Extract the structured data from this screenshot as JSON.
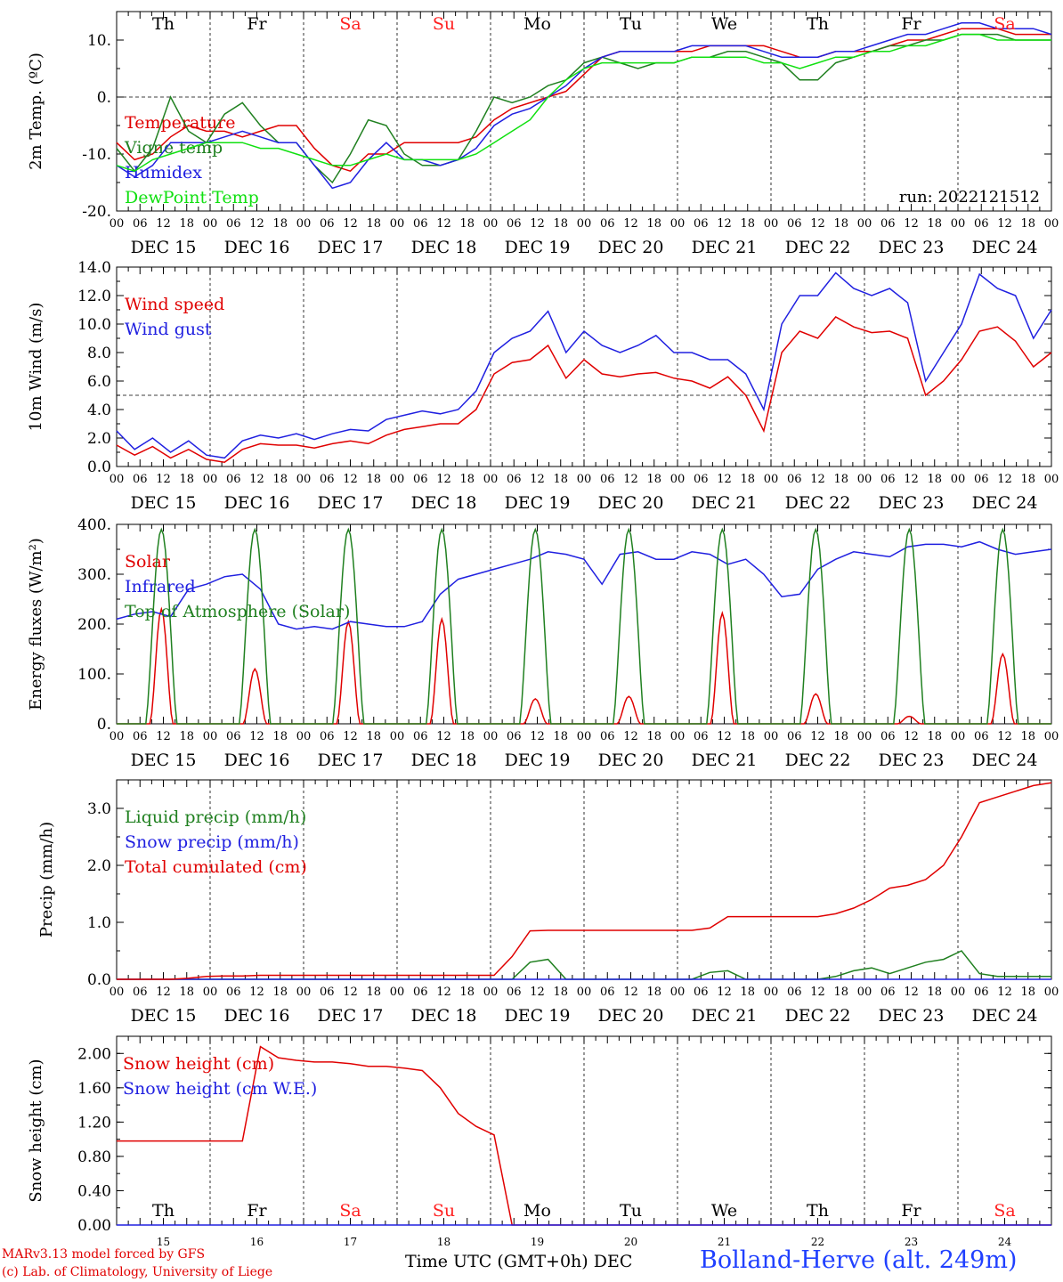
{
  "run_label": "run: 2022121512",
  "x_axis": {
    "hour_ticks": [
      "00",
      "06",
      "12",
      "18"
    ],
    "dates": [
      "DEC 15",
      "DEC 16",
      "DEC 17",
      "DEC 18",
      "DEC 19",
      "DEC 20",
      "DEC 21",
      "DEC 22",
      "DEC 23",
      "DEC 24"
    ],
    "weekdays": [
      "Th",
      "Fr",
      "Sa",
      "Su",
      "Mo",
      "Tu",
      "We",
      "Th",
      "Fr",
      "Sa"
    ],
    "weekend_color": "#ff2020",
    "weekday_color": "#000000",
    "day_numbers": [
      "15",
      "16",
      "17",
      "18",
      "19",
      "20",
      "21",
      "22",
      "23",
      "24"
    ],
    "bottom_label": "Time UTC (GMT+0h)",
    "month_label": "DEC"
  },
  "footer": {
    "model": "MARv3.13 model forced by GFS",
    "credit": "(c) Lab. of Climatology, University of Liege",
    "station": "Bolland-Herve (alt. 249m)"
  },
  "chart_data": [
    {
      "type": "line",
      "ylabel": "2m Temp. (ºC)",
      "ylim": [
        -20,
        15
      ],
      "yticks": [
        -20,
        -10,
        0,
        10
      ],
      "ytick_labels": [
        "-20.",
        "-10.",
        "0.",
        "10."
      ],
      "ref_line": 0,
      "series": [
        {
          "name": "Temperature",
          "color": "#e00000",
          "values": [
            -8,
            -11,
            -10,
            -7,
            -5,
            -6,
            -6,
            -7,
            -6,
            -5,
            -5,
            -9,
            -12,
            -13,
            -10,
            -10,
            -8,
            -8,
            -8,
            -8,
            -7,
            -4,
            -2,
            -1,
            0,
            1,
            4,
            7,
            8,
            8,
            8,
            8,
            8,
            9,
            9,
            9,
            9,
            8,
            7,
            7,
            8,
            8,
            8,
            9,
            10,
            10,
            11,
            12,
            12,
            12,
            11,
            11,
            11
          ]
        },
        {
          "name": "Vigne temp",
          "color": "#208020",
          "values": [
            -9,
            -13,
            -9,
            0,
            -6,
            -8,
            -3,
            -1,
            -5,
            -8,
            -8,
            -12,
            -15,
            -10,
            -4,
            -5,
            -10,
            -12,
            -12,
            -11,
            -6,
            0,
            -1,
            0,
            2,
            3,
            6,
            7,
            6,
            5,
            6,
            6,
            7,
            7,
            8,
            8,
            7,
            6,
            3,
            3,
            6,
            7,
            8,
            9,
            9,
            10,
            10,
            11,
            11,
            11,
            10,
            10,
            10
          ]
        },
        {
          "name": "Humidex",
          "color": "#2020e0",
          "values": [
            -12,
            -14,
            -12,
            -8,
            -8,
            -8,
            -7,
            -6,
            -7,
            -8,
            -8,
            -12,
            -16,
            -15,
            -11,
            -8,
            -11,
            -11,
            -12,
            -11,
            -9,
            -5,
            -3,
            -2,
            0,
            2,
            5,
            7,
            8,
            8,
            8,
            8,
            9,
            9,
            9,
            9,
            8,
            7,
            7,
            7,
            8,
            8,
            9,
            10,
            11,
            11,
            12,
            13,
            13,
            12,
            12,
            12,
            11
          ]
        },
        {
          "name": "DewPoint Temp",
          "color": "#10e010",
          "values": [
            -12,
            -13,
            -11,
            -10,
            -9,
            -8,
            -8,
            -8,
            -9,
            -9,
            -10,
            -11,
            -12,
            -12,
            -11,
            -10,
            -11,
            -11,
            -11,
            -11,
            -10,
            -8,
            -6,
            -4,
            0,
            3,
            5,
            6,
            6,
            6,
            6,
            6,
            7,
            7,
            7,
            7,
            6,
            6,
            5,
            6,
            7,
            7,
            8,
            8,
            9,
            9,
            10,
            11,
            11,
            10,
            10,
            10,
            10
          ]
        }
      ]
    },
    {
      "type": "line",
      "ylabel": "10m Wind (m/s)",
      "ylim": [
        0,
        14
      ],
      "yticks": [
        0,
        2,
        4,
        6,
        8,
        10,
        12,
        14
      ],
      "ytick_labels": [
        "0.0",
        "2.0",
        "4.0",
        "6.0",
        "8.0",
        "10.0",
        "12.0",
        "14.0"
      ],
      "ref_line": 5,
      "series": [
        {
          "name": "Wind speed",
          "color": "#e00000",
          "values": [
            1.5,
            0.8,
            1.4,
            0.6,
            1.2,
            0.5,
            0.3,
            1.2,
            1.6,
            1.5,
            1.5,
            1.3,
            1.6,
            1.8,
            1.6,
            2.2,
            2.6,
            2.8,
            3.0,
            3.0,
            4.0,
            6.5,
            7.3,
            7.5,
            8.5,
            6.2,
            7.5,
            6.5,
            6.3,
            6.5,
            6.6,
            6.2,
            6.0,
            5.5,
            6.3,
            5.0,
            2.5,
            8.0,
            9.5,
            9.0,
            10.5,
            9.8,
            9.4,
            9.5,
            9.0,
            5.0,
            6.0,
            7.5,
            9.5,
            9.8,
            8.8,
            7.0,
            8.0
          ]
        },
        {
          "name": "Wind gust",
          "color": "#2020e0",
          "values": [
            2.5,
            1.2,
            2.0,
            1.0,
            1.8,
            0.8,
            0.6,
            1.8,
            2.2,
            2.0,
            2.3,
            1.9,
            2.3,
            2.6,
            2.5,
            3.3,
            3.6,
            3.9,
            3.7,
            4.0,
            5.3,
            8.0,
            9.0,
            9.5,
            10.9,
            8.0,
            9.5,
            8.5,
            8.0,
            8.5,
            9.2,
            8.0,
            8.0,
            7.5,
            7.5,
            6.5,
            4.0,
            10.0,
            12.0,
            12.0,
            13.6,
            12.5,
            12.0,
            12.5,
            11.5,
            6.0,
            8.0,
            10.0,
            13.5,
            12.5,
            12.0,
            9.0,
            11.0
          ]
        }
      ]
    },
    {
      "type": "line",
      "ylabel": "Energy fluxes (W/m²)",
      "ylim": [
        0,
        400
      ],
      "yticks": [
        0,
        100,
        200,
        300,
        400
      ],
      "ytick_labels": [
        "0.",
        "100.",
        "200.",
        "300.",
        "400."
      ],
      "series": [
        {
          "name": "Solar",
          "color": "#e00000",
          "peaks": [
            230,
            110,
            205,
            210,
            50,
            55,
            222,
            60,
            15,
            140
          ]
        },
        {
          "name": "Infrared",
          "color": "#2020e0",
          "values": [
            210,
            220,
            225,
            215,
            270,
            280,
            295,
            300,
            270,
            200,
            190,
            195,
            190,
            205,
            200,
            195,
            195,
            205,
            260,
            290,
            300,
            310,
            320,
            330,
            345,
            340,
            330,
            280,
            340,
            345,
            330,
            330,
            345,
            340,
            320,
            330,
            300,
            255,
            260,
            310,
            330,
            345,
            340,
            335,
            355,
            360,
            360,
            355,
            365,
            350,
            340,
            345,
            350
          ]
        },
        {
          "name": "Top of Atmosphere (Solar)",
          "color": "#208020",
          "peaks": [
            390,
            390,
            390,
            390,
            390,
            390,
            390,
            390,
            390,
            390
          ]
        }
      ]
    },
    {
      "type": "line",
      "ylabel": "Precip (mm/h)",
      "ylim": [
        0,
        3.5
      ],
      "yticks": [
        0,
        1,
        2,
        3
      ],
      "ytick_labels": [
        "0.0",
        "1.0",
        "2.0",
        "3.0"
      ],
      "series": [
        {
          "name": "Liquid precip (mm/h)",
          "color": "#208020",
          "values": [
            0,
            0,
            0,
            0,
            0,
            0,
            0,
            0,
            0,
            0,
            0,
            0,
            0,
            0,
            0,
            0,
            0,
            0,
            0,
            0,
            0,
            0,
            0,
            0.3,
            0.35,
            0,
            0,
            0,
            0,
            0,
            0,
            0,
            0,
            0.12,
            0.15,
            0,
            0,
            0,
            0,
            0,
            0.05,
            0.15,
            0.2,
            0.1,
            0.2,
            0.3,
            0.35,
            0.5,
            0.1,
            0.05,
            0.05,
            0.05,
            0.05
          ]
        },
        {
          "name": "Snow precip (mm/h)",
          "color": "#2020e0",
          "values": [
            0,
            0,
            0,
            0,
            0,
            0,
            0,
            0,
            0,
            0,
            0,
            0,
            0,
            0,
            0,
            0,
            0,
            0,
            0,
            0,
            0,
            0,
            0,
            0,
            0,
            0,
            0,
            0,
            0,
            0,
            0,
            0,
            0,
            0,
            0,
            0,
            0,
            0,
            0,
            0,
            0,
            0,
            0,
            0,
            0,
            0,
            0,
            0,
            0,
            0,
            0,
            0,
            0
          ]
        },
        {
          "name": "Total cumulated (cm)",
          "color": "#e00000",
          "values": [
            0,
            0,
            0,
            0,
            0.02,
            0.05,
            0.06,
            0.06,
            0.07,
            0.07,
            0.07,
            0.07,
            0.07,
            0.07,
            0.07,
            0.07,
            0.07,
            0.07,
            0.07,
            0.07,
            0.07,
            0.07,
            0.4,
            0.85,
            0.86,
            0.86,
            0.86,
            0.86,
            0.86,
            0.86,
            0.86,
            0.86,
            0.86,
            0.9,
            1.1,
            1.1,
            1.1,
            1.1,
            1.1,
            1.1,
            1.15,
            1.25,
            1.4,
            1.6,
            1.65,
            1.75,
            2.0,
            2.5,
            3.1,
            3.2,
            3.3,
            3.4,
            3.45
          ]
        }
      ]
    },
    {
      "type": "line",
      "ylabel": "Snow height (cm)",
      "ylim": [
        0,
        2.2
      ],
      "yticks": [
        0,
        0.4,
        0.8,
        1.2,
        1.6,
        2.0
      ],
      "ytick_labels": [
        "0.00",
        "0.40",
        "0.80",
        "1.20",
        "1.60",
        "2.00"
      ],
      "series": [
        {
          "name": "Snow height (cm)",
          "color": "#e00000",
          "values": [
            0.98,
            0.98,
            0.98,
            0.98,
            0.98,
            0.98,
            0.98,
            0.98,
            2.08,
            1.95,
            1.92,
            1.9,
            1.9,
            1.88,
            1.85,
            1.85,
            1.83,
            1.8,
            1.6,
            1.3,
            1.15,
            1.05,
            0,
            0,
            0,
            0,
            0,
            0,
            0,
            0,
            0,
            0,
            0,
            0,
            0,
            0,
            0,
            0,
            0,
            0,
            0,
            0,
            0,
            0,
            0,
            0,
            0,
            0,
            0,
            0,
            0,
            0,
            0
          ]
        },
        {
          "name": "Snow height (cm W.E.)",
          "color": "#2020e0",
          "values": [
            0,
            0,
            0,
            0,
            0,
            0,
            0,
            0,
            0,
            0,
            0,
            0,
            0,
            0,
            0,
            0,
            0,
            0,
            0,
            0,
            0,
            0,
            0,
            0,
            0,
            0,
            0,
            0,
            0,
            0,
            0,
            0,
            0,
            0,
            0,
            0,
            0,
            0,
            0,
            0,
            0,
            0,
            0,
            0,
            0,
            0,
            0,
            0,
            0,
            0,
            0,
            0,
            0
          ]
        }
      ]
    }
  ]
}
